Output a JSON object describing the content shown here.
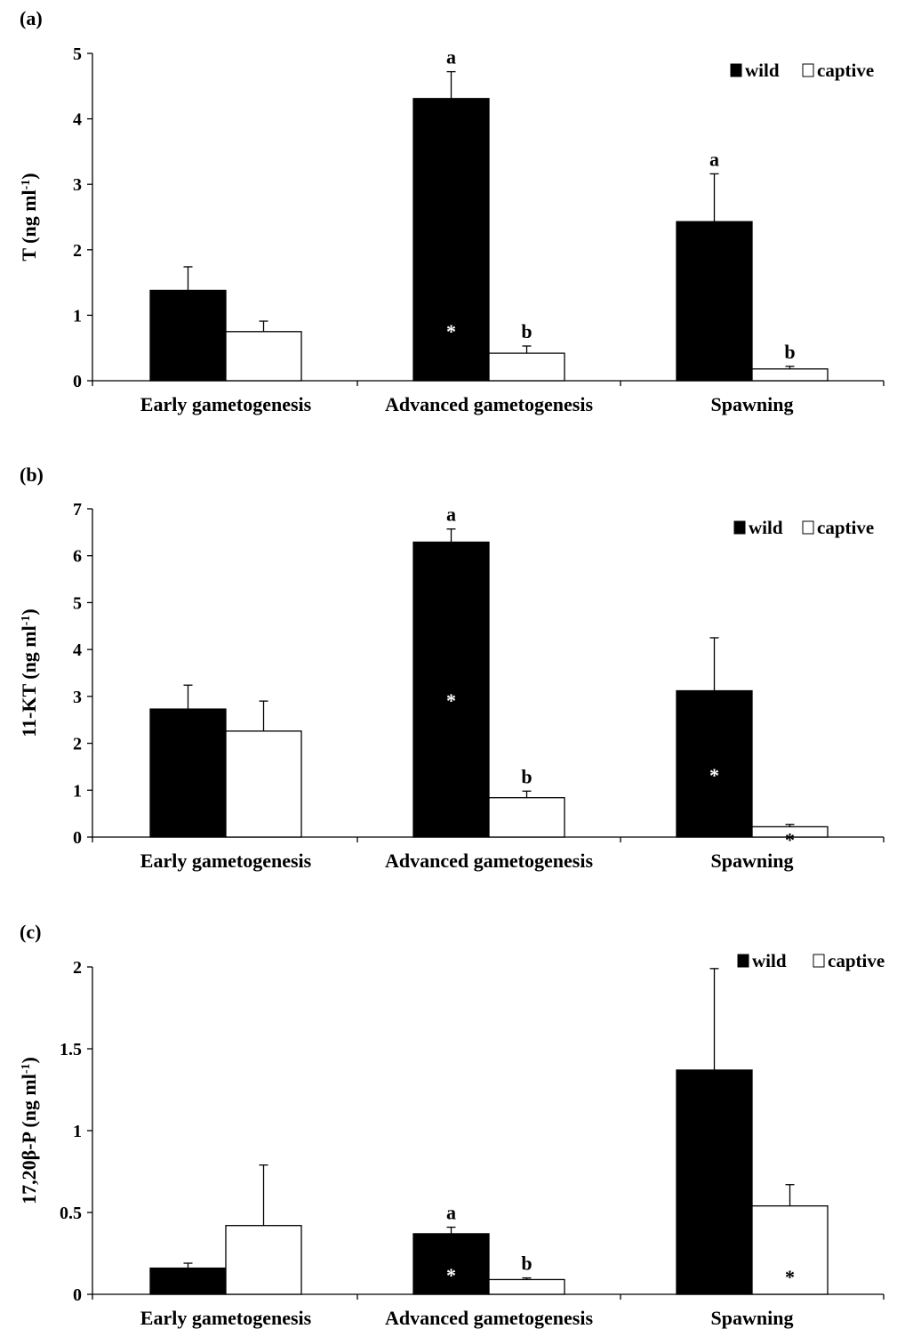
{
  "colors": {
    "wild": "#000000",
    "captive": "#ffffff",
    "axis": "#000000",
    "star_on_dark": "#ffffff",
    "star_on_light": "#000000"
  },
  "chart_data": [
    {
      "type": "bar",
      "panel_label": "(a)",
      "ylabel_main": "T (ng ml",
      "ylabel_sup": "-1",
      "ylabel_end": ")",
      "categories": [
        "Early gametogenesis",
        "Advanced gametogenesis",
        "Spawning"
      ],
      "ylim": [
        0,
        5
      ],
      "yticks": [
        "0",
        "1",
        "2",
        "3",
        "4",
        "5"
      ],
      "ytick_values": [
        0,
        1,
        2,
        3,
        4,
        5
      ],
      "legend": {
        "position": "top-right",
        "entries": [
          "wild",
          "captive"
        ]
      },
      "series": [
        {
          "name": "wild",
          "values": [
            1.38,
            4.31,
            2.43
          ],
          "errors": [
            0.36,
            0.41,
            0.73
          ],
          "letters": [
            "",
            "a",
            "a"
          ],
          "stars": [
            false,
            false,
            false
          ]
        },
        {
          "name": "captive",
          "values": [
            0.75,
            0.42,
            0.18
          ],
          "errors": [
            0.16,
            0.11,
            0.04
          ],
          "letters": [
            "",
            "b",
            "b"
          ],
          "stars": [
            false,
            false,
            false
          ]
        }
      ],
      "stars_between": [
        false,
        true,
        false
      ]
    },
    {
      "type": "bar",
      "panel_label": "(b)",
      "ylabel_main": "11-KT (ng ml",
      "ylabel_sup": "-1",
      "ylabel_end": ")",
      "categories": [
        "Early gametogenesis",
        "Advanced gametogenesis",
        "Spawning"
      ],
      "ylim": [
        0,
        7
      ],
      "yticks": [
        "0",
        "1",
        "2",
        "3",
        "4",
        "5",
        "6",
        "7"
      ],
      "ytick_values": [
        0,
        1,
        2,
        3,
        4,
        5,
        6,
        7
      ],
      "legend": {
        "position": "top-right",
        "entries": [
          "wild",
          "captive"
        ]
      },
      "series": [
        {
          "name": "wild",
          "values": [
            2.73,
            6.29,
            3.12
          ],
          "errors": [
            0.51,
            0.28,
            1.13
          ],
          "letters": [
            "",
            "a",
            ""
          ],
          "stars": [
            false,
            true,
            true
          ]
        },
        {
          "name": "captive",
          "values": [
            2.26,
            0.84,
            0.22
          ],
          "errors": [
            0.64,
            0.14,
            0.05
          ],
          "letters": [
            "",
            "b",
            ""
          ],
          "stars": [
            false,
            false,
            true
          ]
        }
      ]
    },
    {
      "type": "bar",
      "panel_label": "(c)",
      "ylabel_main": "17,20β-P (ng ml",
      "ylabel_sup": "-1",
      "ylabel_end": ")",
      "categories": [
        "Early gametogenesis",
        "Advanced gametogenesis",
        "Spawning"
      ],
      "ylim": [
        0,
        2
      ],
      "yticks": [
        "0",
        "0.5",
        "1",
        "1.5",
        "2"
      ],
      "ytick_values": [
        0,
        0.5,
        1,
        1.5,
        2
      ],
      "legend": {
        "position": "top-right",
        "entries": [
          "wild",
          "captive"
        ]
      },
      "series": [
        {
          "name": "wild",
          "values": [
            0.16,
            0.37,
            1.37
          ],
          "errors": [
            0.03,
            0.04,
            0.62
          ],
          "letters": [
            "",
            "a",
            ""
          ],
          "stars": [
            false,
            true,
            false
          ]
        },
        {
          "name": "captive",
          "values": [
            0.42,
            0.09,
            0.54
          ],
          "errors": [
            0.37,
            0.01,
            0.13
          ],
          "letters": [
            "",
            "b",
            ""
          ],
          "stars": [
            false,
            false,
            true
          ]
        }
      ]
    }
  ]
}
